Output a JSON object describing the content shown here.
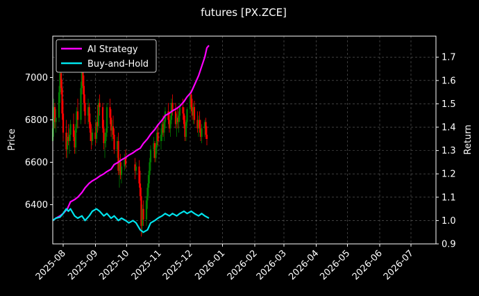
{
  "chart_data": {
    "type": "line",
    "title": "futures [PX.ZCE]",
    "ylabel_left": "Price",
    "ylabel_right": "Return",
    "xlabel": "",
    "x_ticks": [
      "2025-08",
      "2025-09",
      "2025-10",
      "2025-11",
      "2025-12",
      "2026-01",
      "2026-02",
      "2026-03",
      "2026-04",
      "2026-05",
      "2026-06",
      "2026-07"
    ],
    "xlim": [
      "2025-07-22",
      "2026-07-25"
    ],
    "ylim_left": [
      6215,
      7195
    ],
    "ylim_right": [
      0.9,
      1.79
    ],
    "yticks_left": [
      "6400",
      "6600",
      "6800",
      "7000"
    ],
    "yticks_right": [
      "0.9",
      "1.0",
      "1.1",
      "1.2",
      "1.3",
      "1.4",
      "1.5",
      "1.6",
      "1.7"
    ],
    "grid": true,
    "legend_position": "top-left",
    "colors": {
      "background": "#000000",
      "up_candle": "#008000",
      "down_candle": "#ff0000",
      "ai_strategy": "#ff00ff",
      "buy_and_hold": "#00e5ee",
      "grid": "#666666"
    },
    "candles": [
      [
        "2025-07-22",
        6700,
        6830,
        6620,
        6760
      ],
      [
        "2025-07-23",
        6760,
        6900,
        6720,
        6860
      ],
      [
        "2025-07-24",
        6860,
        6880,
        6760,
        6790
      ],
      [
        "2025-07-25",
        6790,
        6850,
        6740,
        6810
      ],
      [
        "2025-07-28",
        6810,
        6960,
        6790,
        6930
      ],
      [
        "2025-07-29",
        6930,
        7060,
        6880,
        7020
      ],
      [
        "2025-07-30",
        7020,
        7080,
        6920,
        6950
      ],
      [
        "2025-07-31",
        6950,
        6990,
        6800,
        6830
      ],
      [
        "2025-08-01",
        6830,
        6890,
        6700,
        6740
      ],
      [
        "2025-08-04",
        6740,
        6800,
        6620,
        6660
      ],
      [
        "2025-08-05",
        6660,
        6740,
        6620,
        6720
      ],
      [
        "2025-08-06",
        6720,
        6780,
        6680,
        6700
      ],
      [
        "2025-08-07",
        6700,
        6760,
        6640,
        6730
      ],
      [
        "2025-08-08",
        6730,
        6800,
        6700,
        6780
      ],
      [
        "2025-08-11",
        6780,
        6830,
        6700,
        6720
      ],
      [
        "2025-08-12",
        6720,
        6750,
        6640,
        6670
      ],
      [
        "2025-08-13",
        6670,
        6780,
        6640,
        6760
      ],
      [
        "2025-08-14",
        6760,
        6860,
        6740,
        6840
      ],
      [
        "2025-08-15",
        6840,
        6900,
        6760,
        6800
      ],
      [
        "2025-08-18",
        6800,
        6980,
        6780,
        6950
      ],
      [
        "2025-08-19",
        6950,
        7080,
        6920,
        7040
      ],
      [
        "2025-08-20",
        7040,
        7100,
        6920,
        6960
      ],
      [
        "2025-08-21",
        6960,
        7010,
        6840,
        6880
      ],
      [
        "2025-08-22",
        6880,
        6920,
        6780,
        6820
      ],
      [
        "2025-08-25",
        6820,
        6900,
        6780,
        6860
      ],
      [
        "2025-08-26",
        6860,
        6880,
        6760,
        6790
      ],
      [
        "2025-08-27",
        6790,
        6830,
        6700,
        6740
      ],
      [
        "2025-08-28",
        6740,
        6780,
        6660,
        6700
      ],
      [
        "2025-08-29",
        6700,
        6760,
        6680,
        6740
      ],
      [
        "2025-09-01",
        6740,
        6790,
        6680,
        6710
      ],
      [
        "2025-09-02",
        6710,
        6820,
        6690,
        6790
      ],
      [
        "2025-09-03",
        6790,
        6870,
        6740,
        6770
      ],
      [
        "2025-09-04",
        6770,
        6900,
        6750,
        6880
      ],
      [
        "2025-09-05",
        6880,
        6920,
        6820,
        6860
      ],
      [
        "2025-09-08",
        6860,
        6880,
        6740,
        6760
      ],
      [
        "2025-09-09",
        6760,
        6800,
        6660,
        6690
      ],
      [
        "2025-09-10",
        6690,
        6740,
        6620,
        6700
      ],
      [
        "2025-09-11",
        6700,
        6760,
        6670,
        6740
      ],
      [
        "2025-09-12",
        6740,
        6880,
        6720,
        6860
      ],
      [
        "2025-09-15",
        6860,
        6900,
        6780,
        6810
      ],
      [
        "2025-09-16",
        6810,
        6850,
        6720,
        6750
      ],
      [
        "2025-09-17",
        6750,
        6800,
        6700,
        6770
      ],
      [
        "2025-09-18",
        6770,
        6820,
        6710,
        6730
      ],
      [
        "2025-09-19",
        6730,
        6760,
        6640,
        6660
      ],
      [
        "2025-09-22",
        6660,
        6720,
        6620,
        6700
      ],
      [
        "2025-09-23",
        6700,
        6740,
        6540,
        6560
      ],
      [
        "2025-09-24",
        6560,
        6620,
        6480,
        6600
      ],
      [
        "2025-09-25",
        6600,
        6640,
        6520,
        6540
      ],
      [
        "2025-09-26",
        6540,
        6600,
        6500,
        6580
      ],
      [
        "2025-09-29",
        6580,
        6640,
        6560,
        6620
      ],
      [
        "2025-09-30",
        6620,
        6660,
        6570,
        6590
      ],
      [
        "2025-10-09",
        6590,
        6620,
        6520,
        6560
      ],
      [
        "2025-10-10",
        6560,
        6600,
        6540,
        6580
      ],
      [
        "2025-10-13",
        6580,
        6610,
        6480,
        6500
      ],
      [
        "2025-10-14",
        6500,
        6560,
        6420,
        6440
      ],
      [
        "2025-10-15",
        6440,
        6480,
        6250,
        6300
      ],
      [
        "2025-10-16",
        6300,
        6400,
        6260,
        6380
      ],
      [
        "2025-10-17",
        6380,
        6420,
        6300,
        6330
      ],
      [
        "2025-10-20",
        6330,
        6440,
        6300,
        6420
      ],
      [
        "2025-10-21",
        6420,
        6500,
        6380,
        6480
      ],
      [
        "2025-10-22",
        6480,
        6560,
        6440,
        6540
      ],
      [
        "2025-10-23",
        6540,
        6620,
        6500,
        6600
      ],
      [
        "2025-10-24",
        6600,
        6680,
        6560,
        6660
      ],
      [
        "2025-10-27",
        6660,
        6720,
        6620,
        6690
      ],
      [
        "2025-10-28",
        6690,
        6700,
        6600,
        6620
      ],
      [
        "2025-10-29",
        6620,
        6690,
        6600,
        6670
      ],
      [
        "2025-10-30",
        6670,
        6760,
        6640,
        6740
      ],
      [
        "2025-10-31",
        6740,
        6780,
        6680,
        6700
      ],
      [
        "2025-11-03",
        6700,
        6760,
        6660,
        6730
      ],
      [
        "2025-11-04",
        6730,
        6800,
        6700,
        6780
      ],
      [
        "2025-11-05",
        6780,
        6820,
        6720,
        6740
      ],
      [
        "2025-11-06",
        6740,
        6800,
        6700,
        6790
      ],
      [
        "2025-11-07",
        6790,
        6860,
        6760,
        6840
      ],
      [
        "2025-11-10",
        6840,
        6880,
        6780,
        6800
      ],
      [
        "2025-11-11",
        6800,
        6840,
        6740,
        6760
      ],
      [
        "2025-11-12",
        6760,
        6820,
        6720,
        6800
      ],
      [
        "2025-11-13",
        6800,
        6900,
        6780,
        6880
      ],
      [
        "2025-11-14",
        6880,
        6920,
        6820,
        6840
      ],
      [
        "2025-11-17",
        6840,
        6880,
        6760,
        6780
      ],
      [
        "2025-11-18",
        6780,
        6830,
        6720,
        6810
      ],
      [
        "2025-11-19",
        6810,
        6860,
        6760,
        6790
      ],
      [
        "2025-11-20",
        6790,
        6840,
        6740,
        6820
      ],
      [
        "2025-11-21",
        6820,
        6880,
        6790,
        6860
      ],
      [
        "2025-11-24",
        6860,
        6900,
        6800,
        6830
      ],
      [
        "2025-11-25",
        6830,
        6860,
        6760,
        6780
      ],
      [
        "2025-11-26",
        6780,
        6820,
        6700,
        6720
      ],
      [
        "2025-11-27",
        6720,
        6800,
        6700,
        6790
      ],
      [
        "2025-11-28",
        6790,
        6860,
        6770,
        6850
      ],
      [
        "2025-12-01",
        6850,
        6940,
        6830,
        6920
      ],
      [
        "2025-12-02",
        6920,
        6940,
        6840,
        6860
      ],
      [
        "2025-12-03",
        6860,
        6900,
        6800,
        6820
      ],
      [
        "2025-12-04",
        6820,
        6880,
        6780,
        6860
      ],
      [
        "2025-12-05",
        6860,
        6890,
        6780,
        6800
      ],
      [
        "2025-12-08",
        6800,
        6840,
        6740,
        6760
      ],
      [
        "2025-12-09",
        6760,
        6820,
        6720,
        6800
      ],
      [
        "2025-12-10",
        6800,
        6840,
        6740,
        6760
      ],
      [
        "2025-12-11",
        6760,
        6800,
        6700,
        6720
      ],
      [
        "2025-12-12",
        6720,
        6780,
        6690,
        6760
      ],
      [
        "2025-12-15",
        6760,
        6800,
        6720,
        6790
      ],
      [
        "2025-12-16",
        6790,
        6810,
        6710,
        6730
      ],
      [
        "2025-12-17",
        6730,
        6770,
        6680,
        6710
      ]
    ],
    "series": [
      {
        "name": "AI Strategy",
        "color": "#ff00ff",
        "points": [
          [
            "2025-07-22",
            1.0
          ],
          [
            "2025-07-25",
            1.01
          ],
          [
            "2025-07-29",
            1.02
          ],
          [
            "2025-08-01",
            1.03
          ],
          [
            "2025-08-05",
            1.05
          ],
          [
            "2025-08-08",
            1.08
          ],
          [
            "2025-08-12",
            1.09
          ],
          [
            "2025-08-15",
            1.1
          ],
          [
            "2025-08-19",
            1.12
          ],
          [
            "2025-08-22",
            1.14
          ],
          [
            "2025-08-26",
            1.16
          ],
          [
            "2025-08-29",
            1.17
          ],
          [
            "2025-09-02",
            1.18
          ],
          [
            "2025-09-05",
            1.19
          ],
          [
            "2025-09-09",
            1.2
          ],
          [
            "2025-09-12",
            1.21
          ],
          [
            "2025-09-16",
            1.22
          ],
          [
            "2025-09-19",
            1.24
          ],
          [
            "2025-09-23",
            1.25
          ],
          [
            "2025-09-26",
            1.26
          ],
          [
            "2025-09-30",
            1.27
          ],
          [
            "2025-10-03",
            1.28
          ],
          [
            "2025-10-07",
            1.29
          ],
          [
            "2025-10-10",
            1.3
          ],
          [
            "2025-10-14",
            1.31
          ],
          [
            "2025-10-17",
            1.33
          ],
          [
            "2025-10-21",
            1.35
          ],
          [
            "2025-10-24",
            1.37
          ],
          [
            "2025-10-28",
            1.39
          ],
          [
            "2025-10-31",
            1.41
          ],
          [
            "2025-11-04",
            1.43
          ],
          [
            "2025-11-07",
            1.45
          ],
          [
            "2025-11-11",
            1.46
          ],
          [
            "2025-11-14",
            1.47
          ],
          [
            "2025-11-18",
            1.48
          ],
          [
            "2025-11-21",
            1.49
          ],
          [
            "2025-11-25",
            1.51
          ],
          [
            "2025-11-28",
            1.53
          ],
          [
            "2025-12-02",
            1.55
          ],
          [
            "2025-12-05",
            1.58
          ],
          [
            "2025-12-09",
            1.62
          ],
          [
            "2025-12-12",
            1.66
          ],
          [
            "2025-12-15",
            1.7
          ],
          [
            "2025-12-17",
            1.74
          ],
          [
            "2025-12-19",
            1.75
          ]
        ]
      },
      {
        "name": "Buy-and-Hold",
        "color": "#00e5ee",
        "points": [
          [
            "2025-07-22",
            1.0
          ],
          [
            "2025-07-25",
            1.01
          ],
          [
            "2025-07-29",
            1.015
          ],
          [
            "2025-08-01",
            1.03
          ],
          [
            "2025-08-04",
            1.05
          ],
          [
            "2025-08-06",
            1.04
          ],
          [
            "2025-08-08",
            1.05
          ],
          [
            "2025-08-12",
            1.02
          ],
          [
            "2025-08-15",
            1.01
          ],
          [
            "2025-08-19",
            1.02
          ],
          [
            "2025-08-22",
            1.0
          ],
          [
            "2025-08-26",
            1.02
          ],
          [
            "2025-08-29",
            1.04
          ],
          [
            "2025-09-02",
            1.05
          ],
          [
            "2025-09-05",
            1.04
          ],
          [
            "2025-09-09",
            1.02
          ],
          [
            "2025-09-12",
            1.03
          ],
          [
            "2025-09-16",
            1.01
          ],
          [
            "2025-09-19",
            1.02
          ],
          [
            "2025-09-23",
            1.0
          ],
          [
            "2025-09-26",
            1.01
          ],
          [
            "2025-09-30",
            1.0
          ],
          [
            "2025-10-03",
            0.99
          ],
          [
            "2025-10-07",
            1.0
          ],
          [
            "2025-10-10",
            0.99
          ],
          [
            "2025-10-14",
            0.96
          ],
          [
            "2025-10-17",
            0.95
          ],
          [
            "2025-10-21",
            0.96
          ],
          [
            "2025-10-24",
            0.99
          ],
          [
            "2025-10-28",
            1.0
          ],
          [
            "2025-10-31",
            1.01
          ],
          [
            "2025-11-04",
            1.02
          ],
          [
            "2025-11-07",
            1.03
          ],
          [
            "2025-11-11",
            1.02
          ],
          [
            "2025-11-14",
            1.03
          ],
          [
            "2025-11-18",
            1.02
          ],
          [
            "2025-11-21",
            1.03
          ],
          [
            "2025-11-25",
            1.04
          ],
          [
            "2025-11-28",
            1.03
          ],
          [
            "2025-12-02",
            1.04
          ],
          [
            "2025-12-05",
            1.03
          ],
          [
            "2025-12-09",
            1.02
          ],
          [
            "2025-12-12",
            1.03
          ],
          [
            "2025-12-15",
            1.02
          ],
          [
            "2025-12-19",
            1.01
          ]
        ]
      }
    ]
  }
}
